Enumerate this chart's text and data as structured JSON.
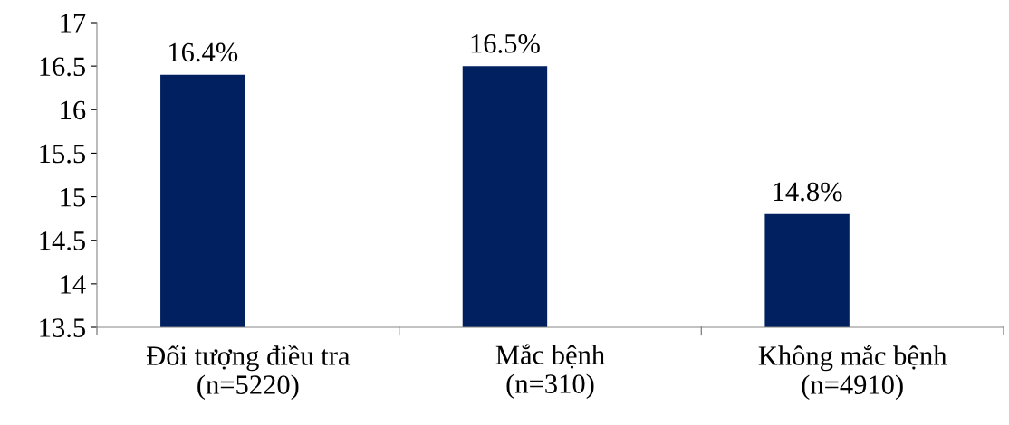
{
  "chart_data": {
    "type": "bar",
    "categories": [
      "Đối tượng điều tra\n(n=5220)",
      "Mắc bệnh\n(n=310)",
      "Không mắc bệnh\n(n=4910)"
    ],
    "values": [
      16.4,
      16.5,
      14.8
    ],
    "color": "#002060",
    "value_labels": [
      "16.4%",
      "16.5%",
      "14.8%"
    ],
    "ylim": [
      13.5,
      17
    ],
    "yticks": [
      13.5,
      14,
      14.5,
      15,
      15.5,
      16,
      16.5,
      17
    ],
    "grid": false,
    "legend": false
  }
}
